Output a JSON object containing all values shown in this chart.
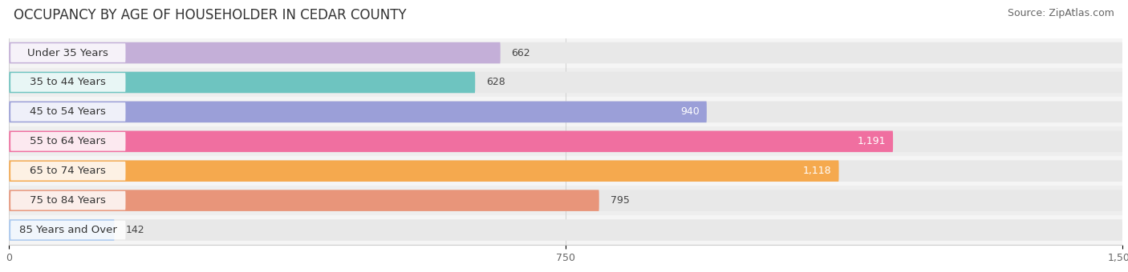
{
  "title": "OCCUPANCY BY AGE OF HOUSEHOLDER IN CEDAR COUNTY",
  "source": "Source: ZipAtlas.com",
  "categories": [
    "Under 35 Years",
    "35 to 44 Years",
    "45 to 54 Years",
    "55 to 64 Years",
    "65 to 74 Years",
    "75 to 84 Years",
    "85 Years and Over"
  ],
  "values": [
    662,
    628,
    940,
    1191,
    1118,
    795,
    142
  ],
  "bar_colors": [
    "#c4afd8",
    "#6ec4c0",
    "#9b9fd8",
    "#f06fa0",
    "#f5a94e",
    "#e8957a",
    "#a8c8f0"
  ],
  "bar_bg_color": "#ebebeb",
  "xlim": [
    0,
    1500
  ],
  "xticks": [
    0,
    750,
    1500
  ],
  "title_fontsize": 12,
  "source_fontsize": 9,
  "label_fontsize": 9.5,
  "value_fontsize": 9,
  "figsize": [
    14.06,
    3.4
  ],
  "dpi": 100
}
